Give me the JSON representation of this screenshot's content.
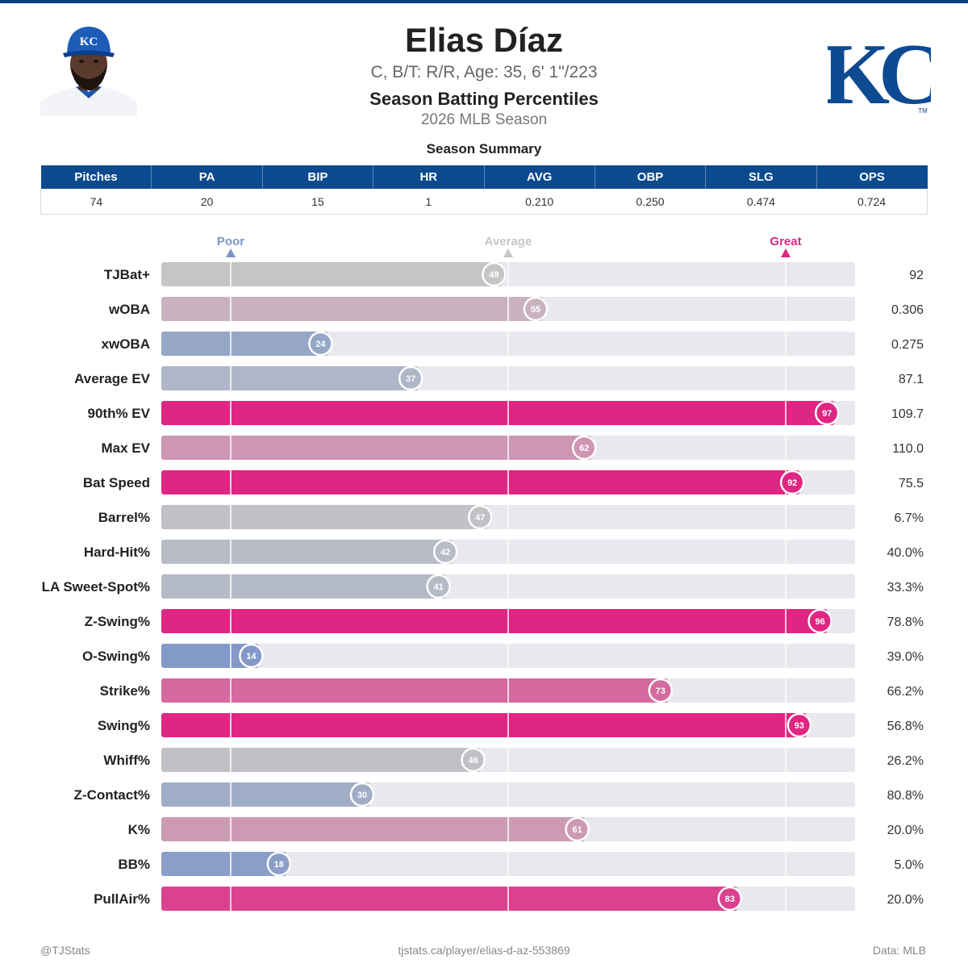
{
  "header": {
    "name": "Elias Díaz",
    "info": "C, B/T: R/R, Age: 35, 6' 1\"/223",
    "title": "Season Batting Percentiles",
    "subtitle": "2026 MLB Season",
    "logo_text": "KC",
    "logo_tm": "TM"
  },
  "summary": {
    "title": "Season Summary",
    "columns": [
      "Pitches",
      "PA",
      "BIP",
      "HR",
      "AVG",
      "OBP",
      "SLG",
      "OPS"
    ],
    "values": [
      "74",
      "20",
      "15",
      "1",
      "0.210",
      "0.250",
      "0.474",
      "0.724"
    ]
  },
  "colors": {
    "brand": "#0b4a8f",
    "poor": "#7b94c8",
    "average": "#c6c6c6",
    "great": "#df2682",
    "track": "#e8e8ee"
  },
  "chart_data": {
    "type": "bar",
    "orientation": "horizontal",
    "xlim": [
      0,
      100
    ],
    "reference_markers": [
      {
        "label": "Poor",
        "value": 10
      },
      {
        "label": "Average",
        "value": 50
      },
      {
        "label": "Great",
        "value": 90
      }
    ],
    "categories": [
      "TJBat+",
      "wOBA",
      "xwOBA",
      "Average EV",
      "90th% EV",
      "Max EV",
      "Bat Speed",
      "Barrel%",
      "Hard-Hit%",
      "LA Sweet-Spot%",
      "Z-Swing%",
      "O-Swing%",
      "Strike%",
      "Swing%",
      "Whiff%",
      "Z-Contact%",
      "K%",
      "BB%",
      "PullAir%"
    ],
    "percentiles": [
      49,
      55,
      24,
      37,
      97,
      62,
      92,
      47,
      42,
      41,
      96,
      14,
      73,
      93,
      46,
      30,
      61,
      18,
      83
    ],
    "stat_values": [
      "92",
      "0.306",
      "0.275",
      "87.1",
      "109.7",
      "110.0",
      "75.5",
      "6.7%",
      "40.0%",
      "33.3%",
      "78.8%",
      "39.0%",
      "66.2%",
      "56.8%",
      "26.2%",
      "80.8%",
      "20.0%",
      "5.0%",
      "20.0%"
    ]
  },
  "footer": {
    "left": "@TJStats",
    "center": "tjstats.ca/player/elias-d-az-553869",
    "right": "Data: MLB"
  }
}
